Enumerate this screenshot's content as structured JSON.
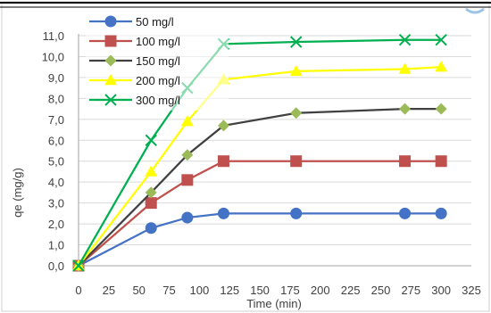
{
  "chart_data": {
    "type": "line",
    "xlabel": "Time (min)",
    "ylabel": "qe (mg/g)",
    "xlim": [
      0,
      325
    ],
    "ylim": [
      0,
      11
    ],
    "x_ticks": [
      0,
      25,
      50,
      75,
      100,
      125,
      150,
      175,
      200,
      225,
      250,
      275,
      300,
      325
    ],
    "y_ticks": [
      "0,0",
      "1,0",
      "2,0",
      "3,0",
      "4,0",
      "5,0",
      "6,0",
      "7,0",
      "8,0",
      "9,0",
      "10,0",
      "11,0"
    ],
    "grid": "horizontal",
    "legend_position": "top-left",
    "series": [
      {
        "name": "50 mg/l",
        "color": "#4472c4",
        "marker": "circle",
        "x": [
          0,
          60,
          90,
          120,
          180,
          270,
          300
        ],
        "y": [
          0,
          1.8,
          2.3,
          2.5,
          2.5,
          2.5,
          2.5
        ]
      },
      {
        "name": "100 mg/l",
        "color": "#c0504d",
        "marker": "square",
        "x": [
          0,
          60,
          90,
          120,
          180,
          270,
          300
        ],
        "y": [
          0,
          3.0,
          4.1,
          5.0,
          5.0,
          5.0,
          5.0
        ]
      },
      {
        "name": "150 mg/l",
        "color": "#9bbb59",
        "line_color": "#404040",
        "marker": "diamond",
        "x": [
          0,
          60,
          90,
          120,
          180,
          270,
          300
        ],
        "y": [
          0,
          3.5,
          5.3,
          6.7,
          7.3,
          7.5,
          7.5
        ]
      },
      {
        "name": "200 mg/l",
        "color": "#ffff00",
        "marker": "triangle",
        "x": [
          0,
          60,
          90,
          120,
          180,
          270,
          300
        ],
        "y": [
          0,
          4.5,
          6.9,
          8.9,
          9.3,
          9.4,
          9.5
        ]
      },
      {
        "name": "300 mg/l",
        "color": "#00b050",
        "marker": "x",
        "x": [
          0,
          60,
          90,
          120,
          180,
          270,
          300
        ],
        "y": [
          0,
          6.0,
          8.5,
          10.6,
          10.7,
          10.8,
          10.8
        ]
      }
    ]
  }
}
